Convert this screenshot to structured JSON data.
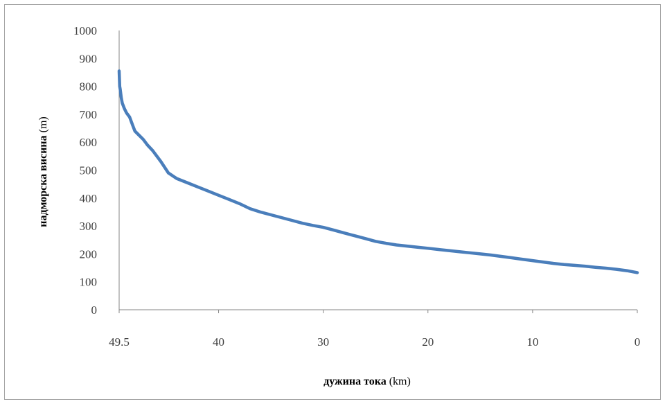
{
  "chart_data": {
    "type": "line",
    "x_reversed": true,
    "xlim": [
      49.5,
      0
    ],
    "ylim": [
      0,
      1000
    ],
    "yticks": [
      0,
      100,
      200,
      300,
      400,
      500,
      600,
      700,
      800,
      900,
      1000
    ],
    "xticks": [
      49.5,
      40,
      30,
      20,
      10,
      0
    ],
    "xlabel": {
      "bold": "дужина тока",
      "unit": " (km)"
    },
    "ylabel": {
      "bold": "надморска висина",
      "unit": " (m)"
    },
    "grid": false,
    "legend": "none",
    "series": [
      {
        "color": "#4a7ebb",
        "x": [
          49.5,
          49.45,
          49.4,
          49.3,
          49.2,
          49.0,
          48.8,
          48.5,
          48.2,
          48.0,
          47.6,
          47.2,
          46.8,
          46.3,
          45.5,
          44.8,
          44.0,
          43.0,
          42.0,
          41.0,
          40.0,
          39.0,
          38.0,
          37.0,
          36.0,
          35.0,
          34.0,
          33.0,
          32.0,
          31.0,
          30.0,
          29.0,
          28.0,
          27.0,
          26.0,
          25.0,
          24.0,
          23.0,
          22.0,
          21.0,
          20.0,
          19.0,
          18.0,
          17.0,
          16.0,
          15.0,
          14.0,
          13.0,
          12.0,
          11.0,
          10.0,
          9.0,
          8.0,
          7.0,
          6.0,
          5.0,
          4.0,
          3.0,
          2.0,
          1.0,
          0.0
        ],
        "y": [
          855,
          800,
          790,
          760,
          740,
          720,
          705,
          690,
          660,
          640,
          625,
          610,
          590,
          570,
          530,
          490,
          470,
          455,
          440,
          425,
          410,
          395,
          380,
          362,
          350,
          340,
          330,
          320,
          310,
          302,
          295,
          285,
          275,
          265,
          255,
          245,
          238,
          232,
          228,
          224,
          220,
          216,
          212,
          208,
          204,
          200,
          196,
          191,
          186,
          181,
          176,
          171,
          166,
          162,
          159,
          156,
          152,
          149,
          145,
          140,
          133
        ]
      }
    ]
  }
}
